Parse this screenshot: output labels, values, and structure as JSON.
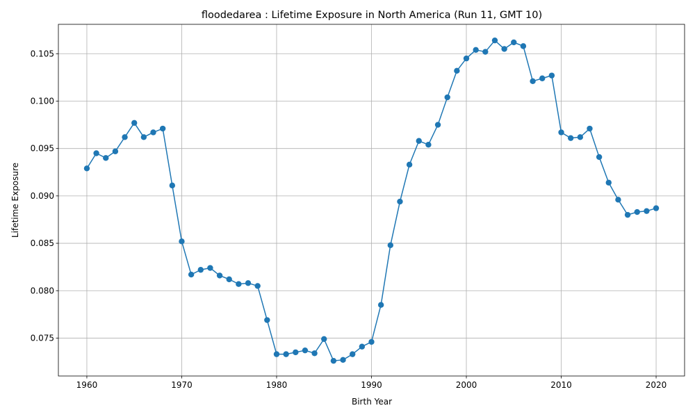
{
  "chart_data": {
    "type": "line",
    "title": "floodedarea : Lifetime Exposure in North America (Run 11, GMT 10)",
    "xlabel": "Birth Year",
    "ylabel": "Lifetime Exposure",
    "xlim": [
      1957,
      2023
    ],
    "ylim": [
      0.071,
      0.1081
    ],
    "xticks": [
      1960,
      1970,
      1980,
      1990,
      2000,
      2010,
      2020
    ],
    "xtick_labels": [
      "1960",
      "1970",
      "1980",
      "1990",
      "2000",
      "2010",
      "2020"
    ],
    "yticks": [
      0.075,
      0.08,
      0.085,
      0.09,
      0.095,
      0.1,
      0.105
    ],
    "ytick_labels": [
      "0.075",
      "0.080",
      "0.085",
      "0.090",
      "0.095",
      "0.100",
      "0.105"
    ],
    "grid": true,
    "line_color": "#1f77b4",
    "marker": "circle",
    "series": [
      {
        "x": [
          1960,
          1961,
          1962,
          1963,
          1964,
          1965,
          1966,
          1967,
          1968,
          1969,
          1970,
          1971,
          1972,
          1973,
          1974,
          1975,
          1976,
          1977,
          1978,
          1979,
          1980,
          1981,
          1982,
          1983,
          1984,
          1985,
          1986,
          1987,
          1988,
          1989,
          1990,
          1991,
          1992,
          1993,
          1994,
          1995,
          1996,
          1997,
          1998,
          1999,
          2000,
          2001,
          2002,
          2003,
          2004,
          2005,
          2006,
          2007,
          2008,
          2009,
          2010,
          2011,
          2012,
          2013,
          2014,
          2015,
          2016,
          2017,
          2018,
          2019,
          2020
        ],
        "values": [
          0.0929,
          0.0945,
          0.094,
          0.0947,
          0.0962,
          0.0977,
          0.0962,
          0.0967,
          0.0971,
          0.0911,
          0.0852,
          0.0817,
          0.0822,
          0.0824,
          0.0816,
          0.0812,
          0.0807,
          0.0808,
          0.0805,
          0.0769,
          0.0733,
          0.0733,
          0.0735,
          0.0737,
          0.0734,
          0.0749,
          0.0726,
          0.0727,
          0.0733,
          0.0741,
          0.0746,
          0.0785,
          0.0848,
          0.0894,
          0.0933,
          0.0958,
          0.0954,
          0.0975,
          0.1004,
          0.1032,
          0.1045,
          0.1054,
          0.1052,
          0.1064,
          0.1055,
          0.1062,
          0.1058,
          0.1021,
          0.1024,
          0.1027,
          0.0967,
          0.0961,
          0.0962,
          0.0971,
          0.0941,
          0.0914,
          0.0896,
          0.088,
          0.0883,
          0.0884,
          0.0887
        ]
      }
    ]
  }
}
